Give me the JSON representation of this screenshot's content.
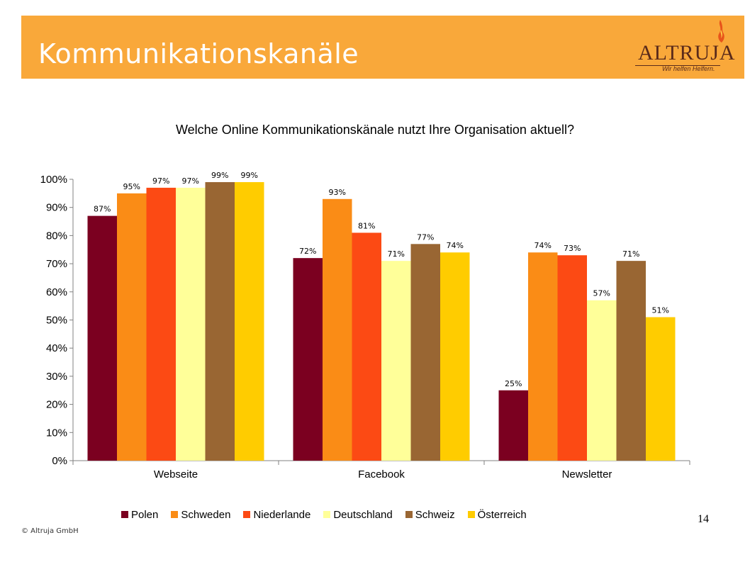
{
  "header": {
    "title": "Kommunikationskanäle"
  },
  "logo": {
    "name": "ALTRUJA",
    "tagline": "Wir helfen Helfern."
  },
  "footer": {
    "copyright": "© Altruja GmbH",
    "page_number": "14"
  },
  "colors": {
    "header_bg": "#F9A83A",
    "logo_text": "#5a2a1a",
    "flame": "#E8541A"
  },
  "chart_data": {
    "type": "bar",
    "title": "Welche Online Kommunikationskänale nutzt Ihre Organisation aktuell?",
    "xlabel": "",
    "ylabel": "",
    "categories": [
      "Webseite",
      "Facebook",
      "Newsletter"
    ],
    "ylim": [
      0,
      100
    ],
    "yticks": [
      "0%",
      "10%",
      "20%",
      "30%",
      "40%",
      "50%",
      "60%",
      "70%",
      "80%",
      "90%",
      "100%"
    ],
    "legend_position": "bottom",
    "grid": false,
    "series": [
      {
        "name": "Polen",
        "color": "#7B0020",
        "values": [
          87,
          72,
          25
        ],
        "labels": [
          "87%",
          "72%",
          "25%"
        ]
      },
      {
        "name": "Schweden",
        "color": "#FA8C16",
        "values": [
          95,
          93,
          74
        ],
        "labels": [
          "95%",
          "93%",
          "74%"
        ]
      },
      {
        "name": "Niederlande",
        "color": "#FC4A14",
        "values": [
          97,
          81,
          73
        ],
        "labels": [
          "97%",
          "81%",
          "73%"
        ]
      },
      {
        "name": "Deutschland",
        "color": "#FFFF99",
        "values": [
          97,
          71,
          57
        ],
        "labels": [
          "97%",
          "71%",
          "57%"
        ]
      },
      {
        "name": "Schweiz",
        "color": "#996633",
        "values": [
          99,
          77,
          71
        ],
        "labels": [
          "99%",
          "77%",
          "71%"
        ]
      },
      {
        "name": "Österreich",
        "color": "#FFCC00",
        "values": [
          99,
          74,
          51
        ],
        "labels": [
          "99%",
          "74%",
          "51%"
        ]
      }
    ]
  }
}
